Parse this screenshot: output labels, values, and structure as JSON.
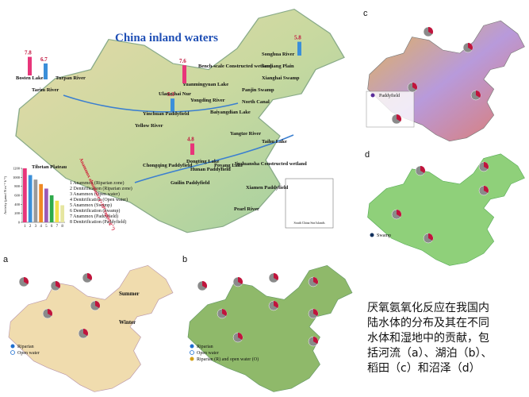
{
  "main": {
    "title": "China inland waters",
    "sites": [
      "Bosten Lake",
      "Turpan River",
      "Tarim River",
      "Tibetan Plateau",
      "Yellow River",
      "Yinchuan Paddyfield",
      "Ulansuhai Nur",
      "Yuanmingyuan Lake",
      "Yongding River",
      "Baiyangdian Lake",
      "North Canal",
      "Panjin Swamp",
      "Songhua River",
      "Sanjiang Plain",
      "Xianghai Swamp",
      "Taihu Lake",
      "Yangtze River",
      "Jiuduansha Constructed wetland",
      "Poyang Lake",
      "Dongting Lake",
      "Hunan Paddyfield",
      "Chongqing Paddyfield",
      "Guilin Paddyfield",
      "Xiamen Paddyfield",
      "Pearl River",
      "Bench-scale Constructed wetland"
    ],
    "values": [
      7.8,
      6.7,
      7.6,
      5.3,
      4.8,
      5.8
    ],
    "abundance_label": "Anammox abundance (×10⁸ copies g⁻¹)",
    "legend": [
      "1 Anammox (Riparian zone)",
      "2 Denitrification (Riparian zone)",
      "3 Anammox (Open water)",
      "4 Denitrification (Open water)",
      "5 Anammox (Swamp)",
      "6 Denitrification (Swamp)",
      "7 Anammox (Paddyfield)",
      "8 Denitrification (Paddyfield)"
    ],
    "inset_chart": {
      "type": "bar",
      "ylabel": "Activity (μmol N m⁻² h⁻¹)",
      "categories": [
        "1",
        "2",
        "3",
        "4",
        "5",
        "6",
        "7",
        "8"
      ],
      "values": [
        1200,
        1050,
        950,
        850,
        750,
        600,
        480,
        380
      ],
      "colors": [
        "#e8357a",
        "#3b8fd9",
        "#9a9a9a",
        "#f08a24",
        "#9b59b6",
        "#2eaa4a",
        "#f2e04a",
        "#e6e6a0"
      ],
      "ylim": [
        0,
        1200
      ],
      "yticks": [
        0,
        200,
        400,
        600,
        800,
        1000,
        1200
      ]
    },
    "south_sea": "South China Sea Islands"
  },
  "panel_a": {
    "letter": "a",
    "legend": [
      "Riparian",
      "Open water"
    ],
    "labels": [
      "Summer",
      "Winter"
    ]
  },
  "panel_b": {
    "letter": "b",
    "legend": [
      "Riparian",
      "Open water",
      "Riparian (R) and open water (O)"
    ]
  },
  "panel_c": {
    "letter": "c",
    "legend": [
      "Paddyfield"
    ]
  },
  "panel_d": {
    "letter": "d",
    "legend": [
      "Swamp"
    ]
  },
  "caption": [
    "厌氧氨氧化反应在我国内",
    "陆水体的分布及其在不同",
    "水体和湿地中的贡献，包",
    "括河流（a）、湖泊（b）、",
    "稻田（c）和沼泽（d）"
  ]
}
